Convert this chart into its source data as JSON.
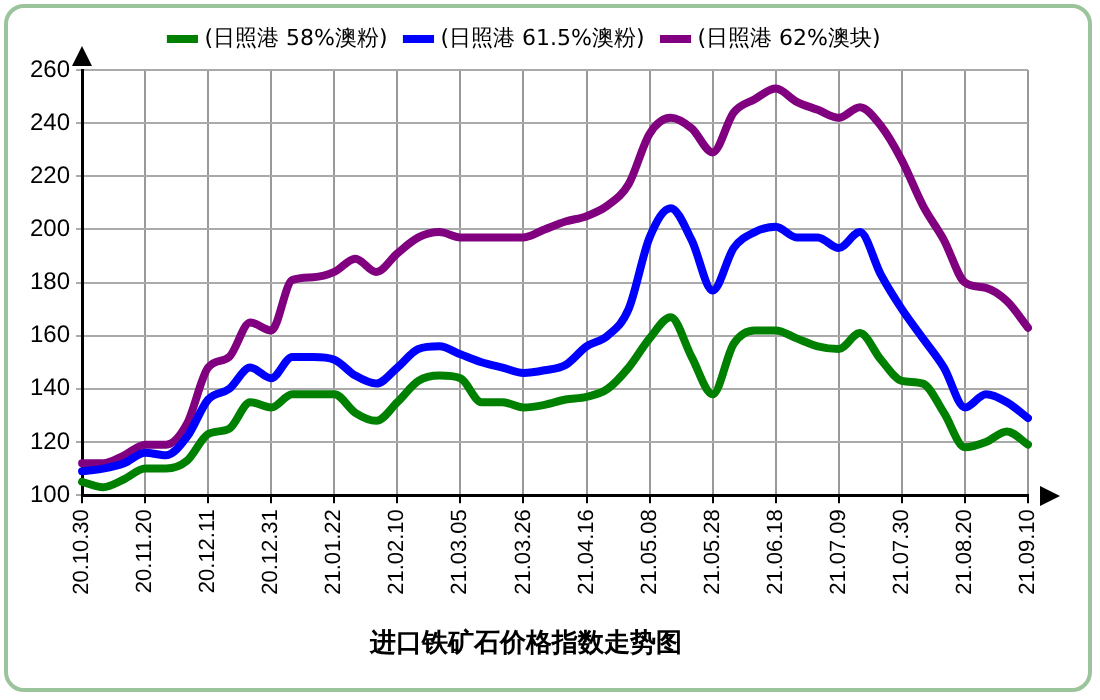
{
  "chart_data": {
    "type": "line",
    "title": "进口铁矿石价格指数走势图",
    "categories": [
      "20.10.30",
      null,
      null,
      "20.11.20",
      null,
      null,
      "20.12.11",
      null,
      null,
      "20.12.31",
      null,
      null,
      "21.01.22",
      null,
      null,
      "21.02.10",
      null,
      null,
      "21.03.05",
      null,
      null,
      "21.03.26",
      null,
      null,
      "21.04.16",
      null,
      null,
      "21.05.08",
      null,
      null,
      "21.05.28",
      null,
      null,
      "21.06.18",
      null,
      null,
      "21.07.09",
      null,
      null,
      "21.07.30",
      null,
      null,
      "21.08.20",
      null,
      null,
      "21.09.10"
    ],
    "series": [
      {
        "name": "(日照港 58%澳粉)",
        "color": "#008000",
        "values": [
          105,
          103,
          106,
          110,
          110,
          113,
          123,
          125,
          135,
          133,
          138,
          138,
          138,
          131,
          128,
          135,
          143,
          145,
          144,
          135,
          135,
          133,
          134,
          136,
          137,
          140,
          148,
          159,
          167,
          152,
          138,
          157,
          162,
          162,
          159,
          156,
          155,
          161,
          151,
          143,
          142,
          131,
          118,
          120,
          124,
          119
        ]
      },
      {
        "name": "(日照港 61.5%澳粉)",
        "color": "#0000ff",
        "values": [
          109,
          110,
          112,
          116,
          115,
          122,
          136,
          140,
          148,
          144,
          152,
          152,
          151,
          145,
          142,
          148,
          155,
          156,
          153,
          150,
          148,
          146,
          147,
          149,
          156,
          160,
          170,
          197,
          208,
          196,
          177,
          193,
          199,
          201,
          197,
          197,
          193,
          199,
          183,
          170,
          159,
          148,
          133,
          138,
          135,
          129
        ]
      },
      {
        "name": "(日照港 62%澳块)",
        "color": "#800080",
        "values": [
          112,
          112,
          115,
          119,
          119,
          127,
          148,
          152,
          165,
          162,
          181,
          182,
          184,
          189,
          184,
          191,
          197,
          199,
          197,
          197,
          197,
          197,
          200,
          203,
          205,
          209,
          217,
          236,
          242,
          238,
          229,
          244,
          249,
          253,
          248,
          245,
          242,
          246,
          239,
          226,
          209,
          196,
          180,
          178,
          173,
          163
        ]
      }
    ],
    "ylim": [
      100,
      260
    ],
    "yticks": [
      100,
      120,
      140,
      160,
      180,
      200,
      220,
      240,
      260
    ],
    "grid": true,
    "legend": "top",
    "line_style": "solid",
    "marker": "none"
  }
}
